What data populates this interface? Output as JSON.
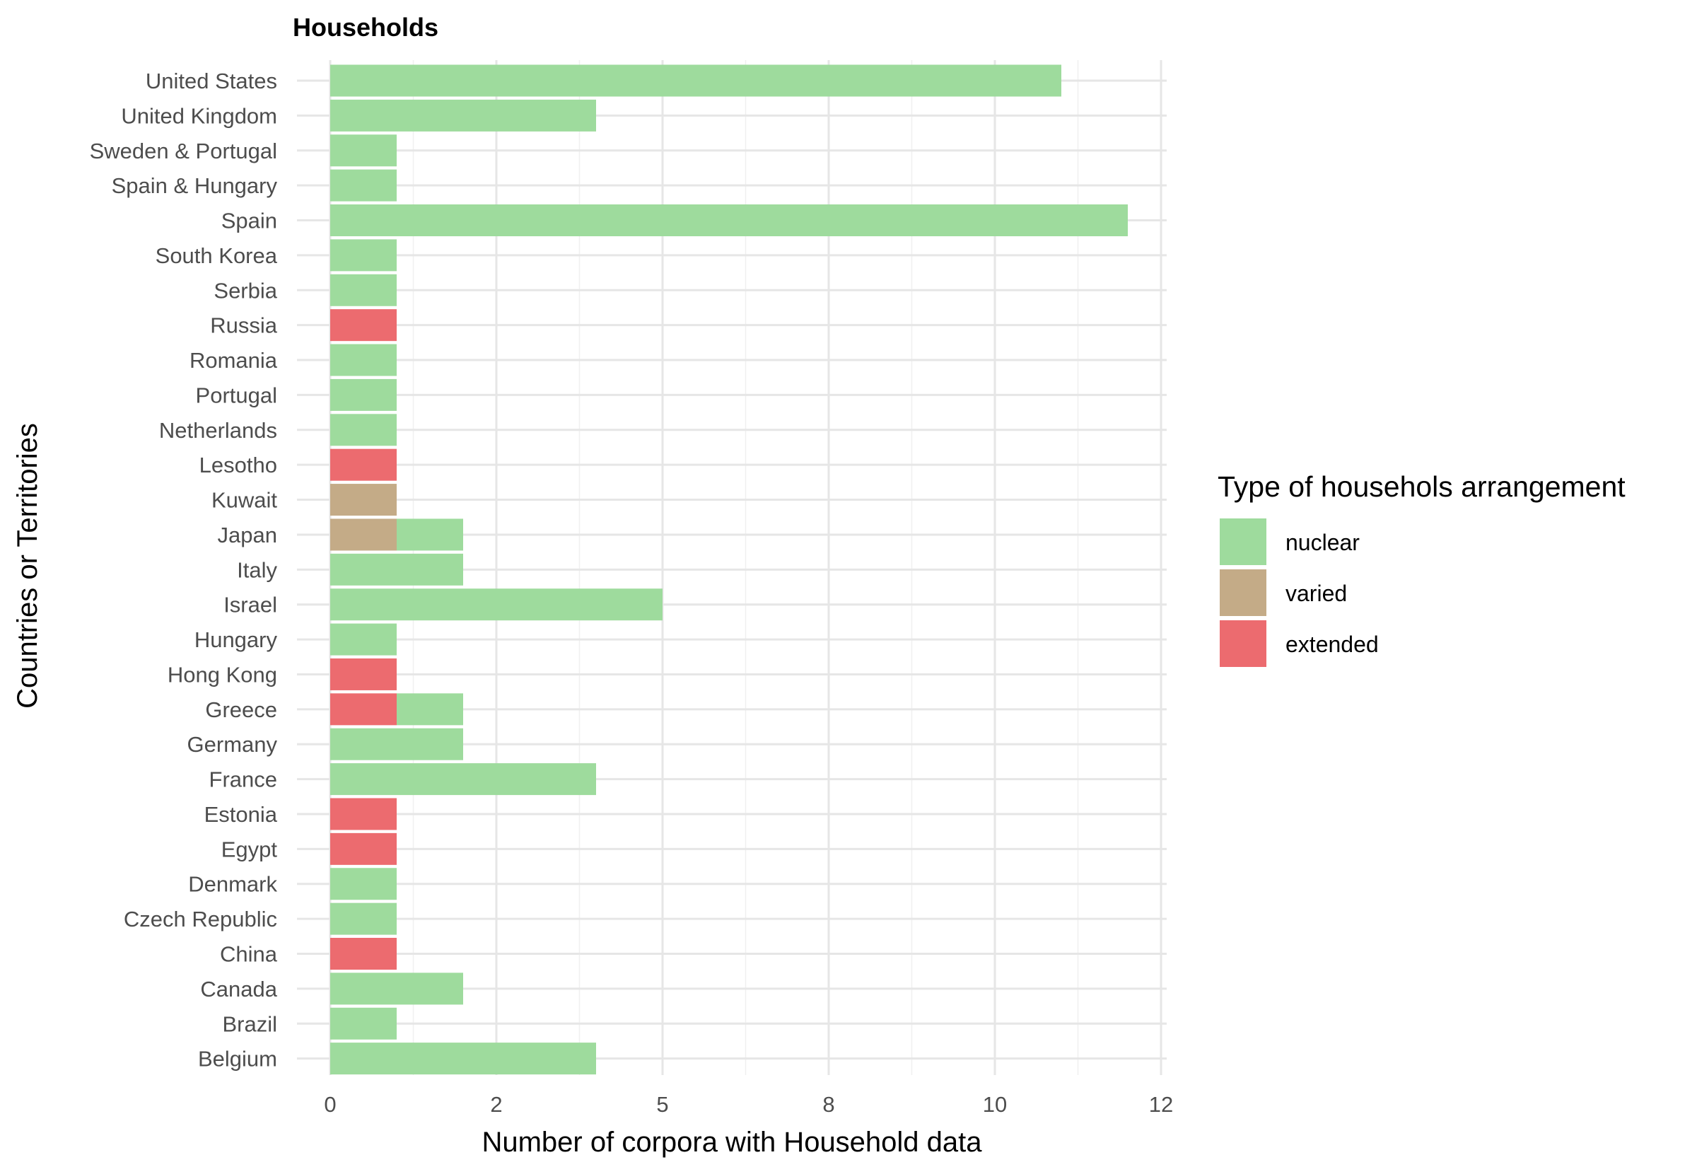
{
  "chart_data": {
    "type": "bar",
    "orientation": "horizontal",
    "stacked": true,
    "title": "Households",
    "xlabel": "Number of corpora with Household data",
    "ylabel": "Countries or Territories",
    "xlim": [
      0,
      12
    ],
    "x_ticks": [
      0,
      2,
      5,
      8,
      10,
      12
    ],
    "x_tick_values": [
      0,
      2,
      4,
      6,
      8,
      10
    ],
    "grid": true,
    "legend": {
      "title": "Type of househols arrangement",
      "position": "right"
    },
    "categories": [
      "United States",
      "United Kingdom",
      "Sweden & Portugal",
      "Spain & Hungary",
      "Spain",
      "South Korea",
      "Serbia",
      "Russia",
      "Romania",
      "Portugal",
      "Netherlands",
      "Lesotho",
      "Kuwait",
      "Japan",
      "Italy",
      "Israel",
      "Hungary",
      "Hong Kong",
      "Greece",
      "Germany",
      "France",
      "Estonia",
      "Egypt",
      "Denmark",
      "Czech Republic",
      "China",
      "Canada",
      "Brazil",
      "Belgium"
    ],
    "series": [
      {
        "name": "extended",
        "color": "#ec6b6f",
        "values": [
          0,
          0,
          0,
          0,
          0,
          0,
          0,
          0.8,
          0,
          0,
          0,
          0.8,
          0,
          0,
          0,
          0,
          0,
          0.8,
          0.8,
          0,
          0,
          0.8,
          0.8,
          0,
          0,
          0.8,
          0,
          0,
          0
        ]
      },
      {
        "name": "varied",
        "color": "#c4ab87",
        "values": [
          0,
          0,
          0,
          0,
          0,
          0,
          0,
          0,
          0,
          0,
          0,
          0,
          0.8,
          0.8,
          0,
          0,
          0,
          0,
          0,
          0,
          0,
          0,
          0,
          0,
          0,
          0,
          0,
          0,
          0
        ]
      },
      {
        "name": "nuclear",
        "color": "#9edb9d",
        "values": [
          8.8,
          3.2,
          0.8,
          0.8,
          9.6,
          0.8,
          0.8,
          0,
          0.8,
          0.8,
          0.8,
          0,
          0,
          0.8,
          1.6,
          4.0,
          0.8,
          0,
          0.8,
          1.6,
          3.2,
          0,
          0,
          0.8,
          0.8,
          0,
          1.6,
          0.8,
          3.2
        ]
      }
    ],
    "legend_order": [
      "nuclear",
      "varied",
      "extended"
    ]
  }
}
